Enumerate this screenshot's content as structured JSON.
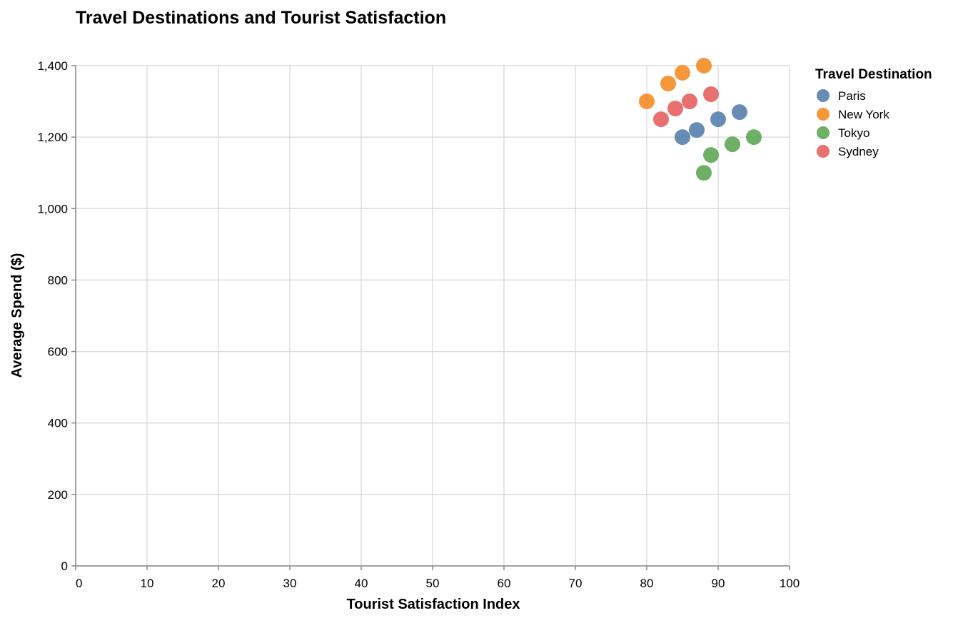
{
  "chart_data": {
    "type": "scatter",
    "title": "Travel Destinations and Tourist Satisfaction",
    "xlabel": "Tourist Satisfaction Index",
    "ylabel": "Average Spend ($)",
    "xlim": [
      0,
      100
    ],
    "ylim": [
      0,
      1400
    ],
    "x_ticks": [
      0,
      10,
      20,
      30,
      40,
      50,
      60,
      70,
      80,
      90,
      100
    ],
    "x_tick_labels": [
      "0",
      "10",
      "20",
      "30",
      "40",
      "50",
      "60",
      "70",
      "80",
      "90",
      "100"
    ],
    "y_ticks": [
      0,
      200,
      400,
      600,
      800,
      1000,
      1200,
      1400
    ],
    "y_tick_labels": [
      "0",
      "200",
      "400",
      "600",
      "800",
      "1,000",
      "1,200",
      "1,400"
    ],
    "grid": true,
    "legend": {
      "title": "Travel Destination",
      "placement": "top-right"
    },
    "series": [
      {
        "name": "Paris",
        "color": "#4c78a8",
        "points": [
          {
            "x": 85,
            "y": 1200
          },
          {
            "x": 87,
            "y": 1220
          },
          {
            "x": 90,
            "y": 1250
          },
          {
            "x": 93,
            "y": 1270
          }
        ]
      },
      {
        "name": "New York",
        "color": "#f58518",
        "points": [
          {
            "x": 80,
            "y": 1300
          },
          {
            "x": 83,
            "y": 1350
          },
          {
            "x": 85,
            "y": 1380
          },
          {
            "x": 88,
            "y": 1400
          }
        ]
      },
      {
        "name": "Tokyo",
        "color": "#54a24b",
        "points": [
          {
            "x": 88,
            "y": 1100
          },
          {
            "x": 89,
            "y": 1150
          },
          {
            "x": 92,
            "y": 1180
          },
          {
            "x": 95,
            "y": 1200
          }
        ]
      },
      {
        "name": "Sydney",
        "color": "#e45756",
        "points": [
          {
            "x": 82,
            "y": 1250
          },
          {
            "x": 84,
            "y": 1280
          },
          {
            "x": 86,
            "y": 1300
          },
          {
            "x": 89,
            "y": 1320
          }
        ]
      }
    ]
  }
}
